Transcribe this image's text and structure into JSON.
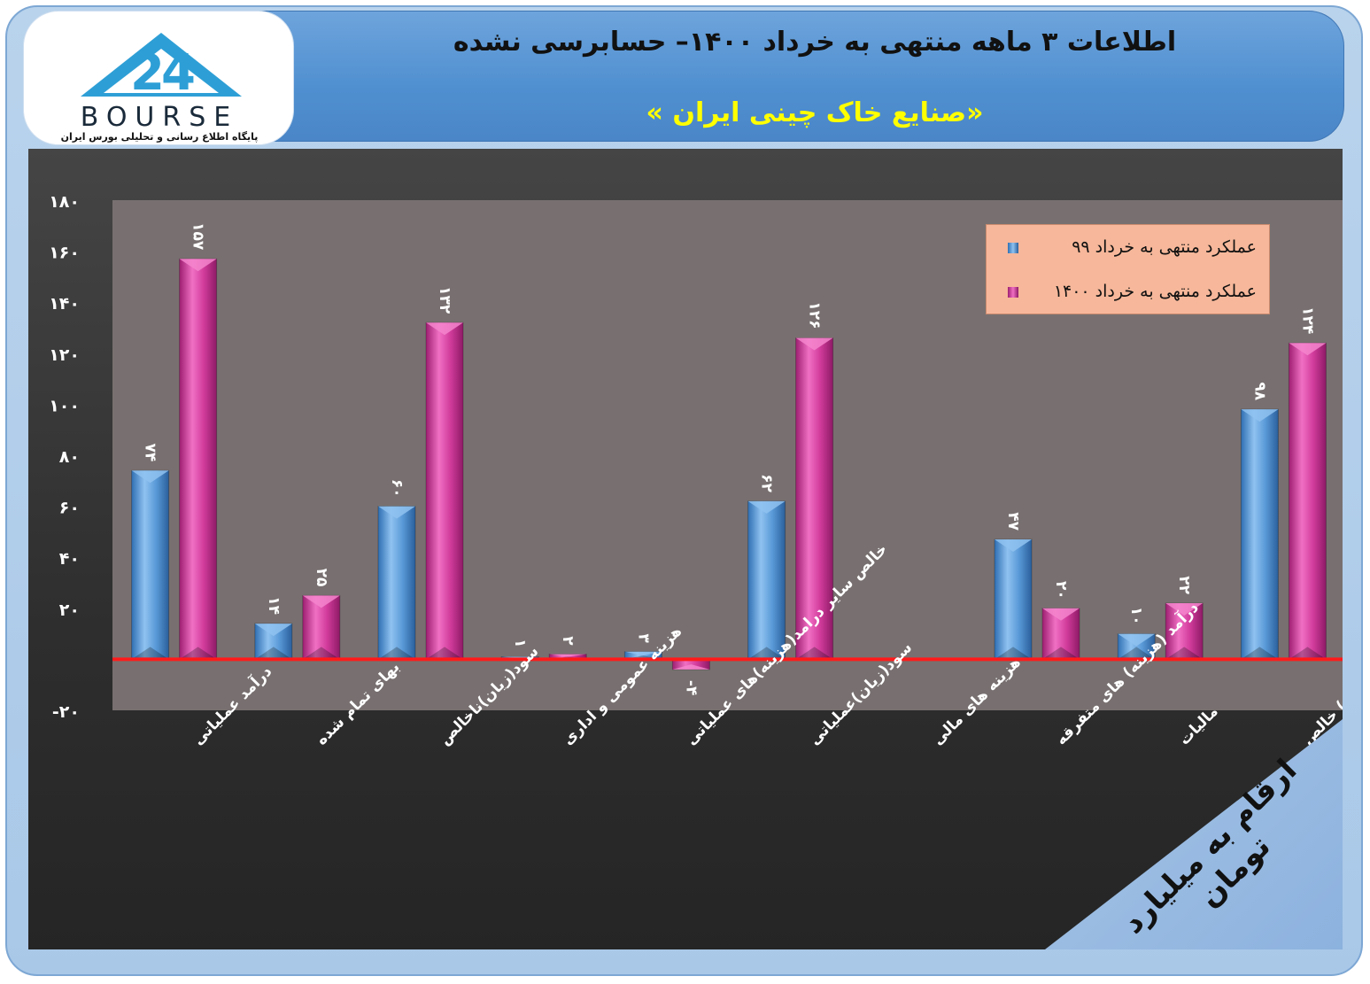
{
  "header": {
    "title": "اطلاعات ۳ ماهه منتهی به خرداد ۱۴۰۰– حسابرسی نشده",
    "subtitle": "«صنایع خاک چینی ایران »"
  },
  "logo": {
    "word": "BOURSE",
    "tagline": "پایگاه اطلاع رسانی و تحلیلی بورس ایران"
  },
  "badge": {
    "text": "ارقام به میلیارد تومان"
  },
  "colors": {
    "series1": "#5a9ad8",
    "series2": "#d23c9c",
    "zero_line": "#ff1a1a",
    "plot_bg": "#787070",
    "axis_text": "#ffffff"
  },
  "chart_data": {
    "type": "bar",
    "title": "",
    "xlabel": "",
    "ylabel": "",
    "ylim": [
      -20,
      180
    ],
    "yticks": [
      180,
      160,
      140,
      120,
      100,
      80,
      60,
      40,
      20,
      -20
    ],
    "ytick_labels": [
      "۱۸۰",
      "۱۶۰",
      "۱۴۰",
      "۱۲۰",
      "۱۰۰",
      "۸۰",
      "۶۰",
      "۴۰",
      "۲۰",
      "-۲۰"
    ],
    "legend_position": "top-right",
    "categories": [
      "درآمد عملیاتی",
      "بهای تمام شده",
      "سود(زیان)ناخالص",
      "هزینه عمومی و اداری",
      "خالص سایر درامد(هزینه)های عملیاتی",
      "سود(زیان)عملیاتی",
      "هزینه های مالی",
      "درآمد (هزینه) های متفرقه",
      "مالیات",
      "سود(زیان) خالص"
    ],
    "series": [
      {
        "name": "عملکرد منتهی به خرداد ۹۹",
        "values": [
          74,
          14,
          60,
          1,
          3,
          62,
          0,
          47,
          10,
          98
        ],
        "labels": [
          "۷۴",
          "۱۴",
          "۶۰",
          "۱",
          "۳",
          "۶۲",
          "",
          "۴۷",
          "۱۰",
          "۹۸"
        ]
      },
      {
        "name": "عملکرد منتهی به خرداد ۱۴۰۰",
        "values": [
          157,
          25,
          132,
          2,
          -4,
          126,
          0,
          20,
          22,
          124
        ],
        "labels": [
          "۱۵۷",
          "۲۵",
          "۱۳۲",
          "۲",
          "-۴",
          "۱۲۶",
          "",
          "۲۰",
          "۲۲",
          "۱۲۴"
        ]
      }
    ]
  }
}
